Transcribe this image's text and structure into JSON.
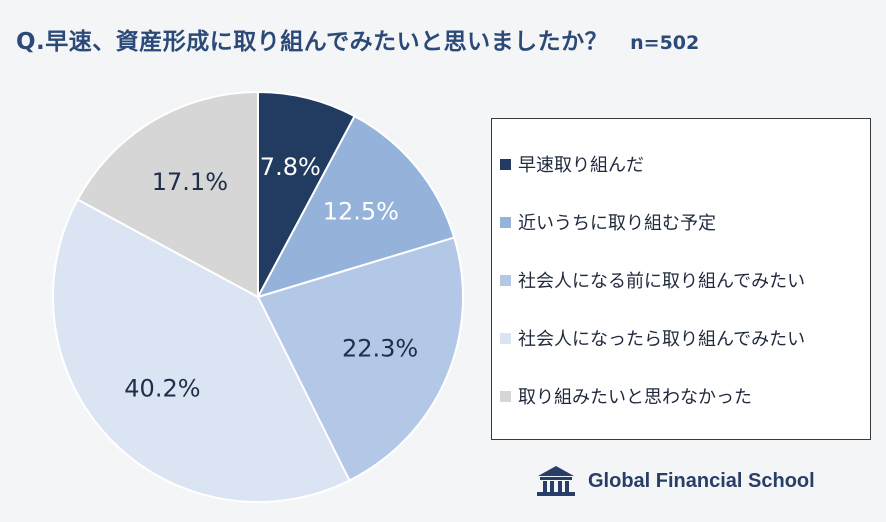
{
  "header": {
    "title": "Q.早速、資産形成に取り組んでみたいと思いましたか？",
    "sample_size": "n=502"
  },
  "chart_data": {
    "type": "pie",
    "categories": [
      "早速取り組んだ",
      "近いうちに取り組む予定",
      "社会人になる前に取り組んでみたい",
      "社会人になったら取り組んでみたい",
      "取り組みたいと思わなかった"
    ],
    "values": [
      7.8,
      12.5,
      22.3,
      40.2,
      17.1
    ],
    "data_labels": [
      "7.8%",
      "12.5%",
      "22.3%",
      "40.2%",
      "17.1%"
    ],
    "colors": [
      "#213c60",
      "#94b2da",
      "#b3c8e6",
      "#dae4f2",
      "#d6d6d6"
    ],
    "label_colors": [
      "#ffffff",
      "#ffffff",
      "#1f2f4a",
      "#1f2f4a",
      "#1f2f4a"
    ],
    "legend_position": "right",
    "start_angle": "12 o'clock",
    "direction": "clockwise"
  },
  "brand": {
    "name": "Global Financial School",
    "logo_icon": "school-building-icon"
  }
}
